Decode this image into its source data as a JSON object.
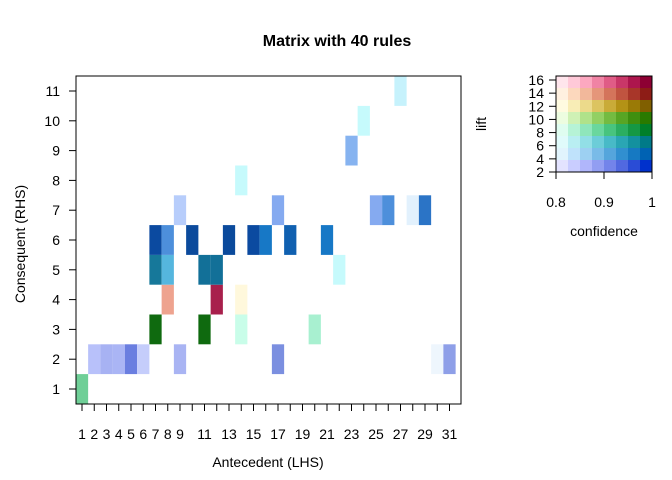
{
  "chart_data": {
    "type": "heatmap",
    "title": "Matrix with 40 rules",
    "xlabel": "Antecedent (LHS)",
    "ylabel": "Consequent (RHS)",
    "xlim": [
      1,
      31
    ],
    "ylim": [
      1,
      11
    ],
    "x_ticks": [
      "1",
      "2",
      "3",
      "4",
      "5",
      "6",
      "7",
      "8",
      "9",
      "11",
      "13",
      "15",
      "17",
      "19",
      "21",
      "23",
      "25",
      "27",
      "29",
      "31"
    ],
    "y_ticks": [
      "1",
      "2",
      "3",
      "4",
      "5",
      "6",
      "7",
      "8",
      "9",
      "10",
      "11"
    ],
    "cells": [
      {
        "x": 1,
        "y": 1,
        "color": "#6fcf97"
      },
      {
        "x": 2,
        "y": 2,
        "color": "#b8c1fa"
      },
      {
        "x": 3,
        "y": 2,
        "color": "#a7b2f3"
      },
      {
        "x": 4,
        "y": 2,
        "color": "#aab5f5"
      },
      {
        "x": 5,
        "y": 2,
        "color": "#6a7ee0"
      },
      {
        "x": 6,
        "y": 2,
        "color": "#c5cdfb"
      },
      {
        "x": 7,
        "y": 3,
        "color": "#0f6a0f"
      },
      {
        "x": 7,
        "y": 5,
        "color": "#16789a"
      },
      {
        "x": 7,
        "y": 6,
        "color": "#0b4aa0"
      },
      {
        "x": 8,
        "y": 4,
        "color": "#eea38f"
      },
      {
        "x": 8,
        "y": 5,
        "color": "#55b6de"
      },
      {
        "x": 8,
        "y": 6,
        "color": "#4d8fdb"
      },
      {
        "x": 9,
        "y": 2,
        "color": "#a9b4f3"
      },
      {
        "x": 9,
        "y": 7,
        "color": "#b7cdfb"
      },
      {
        "x": 10,
        "y": 6,
        "color": "#0b4a9c"
      },
      {
        "x": 11,
        "y": 3,
        "color": "#0f6a0f"
      },
      {
        "x": 11,
        "y": 5,
        "color": "#127098"
      },
      {
        "x": 12,
        "y": 4,
        "color": "#a8204c"
      },
      {
        "x": 12,
        "y": 5,
        "color": "#127098"
      },
      {
        "x": 13,
        "y": 6,
        "color": "#0b4a9c"
      },
      {
        "x": 14,
        "y": 3,
        "color": "#c9fde9"
      },
      {
        "x": 14,
        "y": 4,
        "color": "#fff8dc"
      },
      {
        "x": 14,
        "y": 8,
        "color": "#c6fafc"
      },
      {
        "x": 15,
        "y": 6,
        "color": "#0b4aa0"
      },
      {
        "x": 16,
        "y": 6,
        "color": "#1778c6"
      },
      {
        "x": 17,
        "y": 2,
        "color": "#7b8fe0"
      },
      {
        "x": 17,
        "y": 7,
        "color": "#85aaf0"
      },
      {
        "x": 18,
        "y": 6,
        "color": "#1060b0"
      },
      {
        "x": 20,
        "y": 3,
        "color": "#a8f0d0"
      },
      {
        "x": 21,
        "y": 6,
        "color": "#1778c6"
      },
      {
        "x": 22,
        "y": 5,
        "color": "#c6fafc"
      },
      {
        "x": 23,
        "y": 9,
        "color": "#86b3f0"
      },
      {
        "x": 24,
        "y": 10,
        "color": "#c6fafc"
      },
      {
        "x": 25,
        "y": 7,
        "color": "#85aaf0"
      },
      {
        "x": 26,
        "y": 7,
        "color": "#4d8fdb"
      },
      {
        "x": 27,
        "y": 11,
        "color": "#c6f2fc"
      },
      {
        "x": 28,
        "y": 7,
        "color": "#e2f1fd"
      },
      {
        "x": 29,
        "y": 7,
        "color": "#2b74c6"
      },
      {
        "x": 30,
        "y": 2,
        "color": "#eef6fd"
      },
      {
        "x": 31,
        "y": 2,
        "color": "#8e9fe8"
      }
    ],
    "legend": {
      "xlabel": "confidence",
      "ylabel": "lift",
      "x_ticks": [
        "0.8",
        "0.9",
        "1"
      ],
      "y_ticks": [
        "2",
        "4",
        "6",
        "8",
        "10",
        "12",
        "14",
        "16"
      ],
      "grid_colors": [
        [
          "#e3e3ff",
          "#c9cdff",
          "#b0b6fb",
          "#929ef2",
          "#7384ea",
          "#5169e0",
          "#2a4cd6",
          "#0031cc"
        ],
        [
          "#e1f4fd",
          "#bfe2fb",
          "#9dd0f2",
          "#79bbe8",
          "#55a5dc",
          "#318fd0",
          "#1679c2",
          "#0062b3"
        ],
        [
          "#e0fbfb",
          "#b9eef2",
          "#92dfe6",
          "#6ccdd8",
          "#48bac7",
          "#2aa6b4",
          "#13919f",
          "#007a88"
        ],
        [
          "#dffdf0",
          "#b6f3d6",
          "#8fe6bb",
          "#6ad79d",
          "#48c47e",
          "#2bae61",
          "#159844",
          "#007f2a"
        ],
        [
          "#edfde0",
          "#cff1b5",
          "#b0e28a",
          "#92d063",
          "#74bb41",
          "#58a524",
          "#3f8f0f",
          "#297a00"
        ],
        [
          "#fffbe0",
          "#f8edb6",
          "#ecda8b",
          "#dcc460",
          "#c9ab38",
          "#b39216",
          "#9a7a06",
          "#805f00"
        ],
        [
          "#fff0e0",
          "#fcd8bd",
          "#f2b89b",
          "#e5967a",
          "#d4745b",
          "#c05440",
          "#a83629",
          "#8d1c16"
        ],
        [
          "#ffe5ec",
          "#ffc9d8",
          "#fca8c0",
          "#f083a4",
          "#e05c86",
          "#c93768",
          "#ad164d",
          "#8d0033"
        ]
      ]
    }
  }
}
